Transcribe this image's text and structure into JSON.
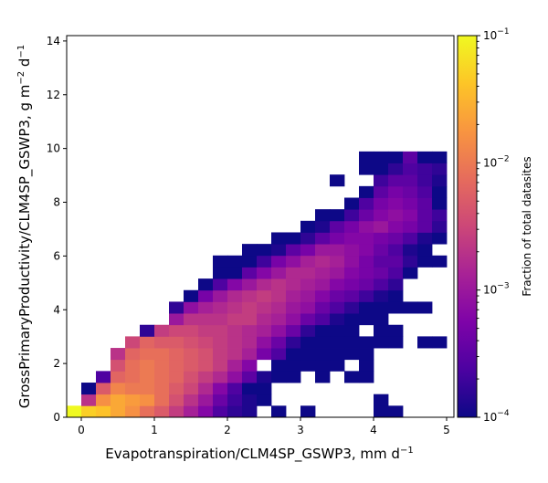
{
  "chart_data": {
    "type": "heatmap",
    "title": "",
    "xlabel_main": "Evapotranspiration/CLM4SP_GSWP3,  mm d",
    "xlabel_sup": "−1",
    "ylabel_main": "GrossPrimaryProductivity/CLM4SP_GSWP3,  g m",
    "ylabel_sup1": "−2",
    "ylabel_mid": " d",
    "ylabel_sup2": "−1",
    "xlim": [
      -0.2,
      5.1
    ],
    "ylim": [
      0,
      14.2
    ],
    "xticks": [
      "0",
      "1",
      "2",
      "3",
      "4",
      "5"
    ],
    "yticks": [
      "0",
      "2",
      "4",
      "6",
      "8",
      "10",
      "12",
      "14"
    ],
    "bin_width_x": 0.2,
    "bin_height_y": 0.43,
    "colorbar": {
      "label": "Fraction of total datasites",
      "scale": "log",
      "range": [
        0.0001,
        0.1
      ],
      "tick_base": "10",
      "tick_exponents": [
        "−4",
        "−3",
        "−2",
        "−1"
      ],
      "colormap": "plasma"
    },
    "cells": [
      [
        -0.2,
        0,
        -1.0
      ],
      [
        0.0,
        0,
        -1.3
      ],
      [
        0.2,
        0,
        -1.4
      ],
      [
        0.4,
        0,
        -1.6
      ],
      [
        0.6,
        0,
        -1.8
      ],
      [
        0.8,
        0,
        -2.1
      ],
      [
        1.0,
        0,
        -2.3
      ],
      [
        1.2,
        0,
        -2.6
      ],
      [
        1.4,
        0,
        -2.9
      ],
      [
        1.6,
        0,
        -3.2
      ],
      [
        1.8,
        0,
        -3.6
      ],
      [
        2.0,
        0,
        -3.8
      ],
      [
        2.2,
        0,
        -3.9
      ],
      [
        2.6,
        0,
        -4.0
      ],
      [
        3.0,
        0,
        -4.0
      ],
      [
        4.0,
        0,
        -4.0
      ],
      [
        4.2,
        0,
        -4.0
      ],
      [
        0.0,
        1,
        -2.7
      ],
      [
        0.2,
        1,
        -1.8
      ],
      [
        0.4,
        1,
        -1.6
      ],
      [
        0.6,
        1,
        -1.7
      ],
      [
        0.8,
        1,
        -1.8
      ],
      [
        1.0,
        1,
        -2.1
      ],
      [
        1.2,
        1,
        -2.4
      ],
      [
        1.4,
        1,
        -2.7
      ],
      [
        1.6,
        1,
        -3.0
      ],
      [
        1.8,
        1,
        -3.4
      ],
      [
        2.0,
        1,
        -3.7
      ],
      [
        2.2,
        1,
        -3.9
      ],
      [
        2.4,
        1,
        -4.0
      ],
      [
        4.0,
        1,
        -4.0
      ],
      [
        0.0,
        2,
        -4.0
      ],
      [
        0.2,
        2,
        -2.3
      ],
      [
        0.4,
        2,
        -1.9
      ],
      [
        0.6,
        2,
        -2.0
      ],
      [
        0.8,
        2,
        -2.0
      ],
      [
        1.0,
        2,
        -2.1
      ],
      [
        1.2,
        2,
        -2.3
      ],
      [
        1.4,
        2,
        -2.5
      ],
      [
        1.6,
        2,
        -2.8
      ],
      [
        1.8,
        2,
        -3.2
      ],
      [
        2.0,
        2,
        -3.6
      ],
      [
        2.2,
        2,
        -4.0
      ],
      [
        2.4,
        2,
        -4.0
      ],
      [
        0.2,
        3,
        -3.6
      ],
      [
        0.4,
        3,
        -2.2
      ],
      [
        0.6,
        3,
        -2.1
      ],
      [
        0.8,
        3,
        -2.0
      ],
      [
        1.0,
        3,
        -2.1
      ],
      [
        1.2,
        3,
        -2.2
      ],
      [
        1.4,
        3,
        -2.4
      ],
      [
        1.6,
        3,
        -2.6
      ],
      [
        1.8,
        3,
        -2.8
      ],
      [
        2.0,
        3,
        -3.1
      ],
      [
        2.2,
        3,
        -3.5
      ],
      [
        2.4,
        3,
        -3.9
      ],
      [
        2.6,
        3,
        -4.0
      ],
      [
        2.8,
        3,
        -4.0
      ],
      [
        3.2,
        3,
        -4.0
      ],
      [
        3.6,
        3,
        -4.0
      ],
      [
        3.8,
        3,
        -4.0
      ],
      [
        0.4,
        4,
        -2.4
      ],
      [
        0.6,
        4,
        -2.1
      ],
      [
        0.8,
        4,
        -2.0
      ],
      [
        1.0,
        4,
        -2.1
      ],
      [
        1.2,
        4,
        -2.2
      ],
      [
        1.4,
        4,
        -2.3
      ],
      [
        1.6,
        4,
        -2.4
      ],
      [
        1.8,
        4,
        -2.6
      ],
      [
        2.0,
        4,
        -2.9
      ],
      [
        2.2,
        4,
        -3.2
      ],
      [
        2.6,
        4,
        -4.0
      ],
      [
        2.8,
        4,
        -4.0
      ],
      [
        3.0,
        4,
        -4.0
      ],
      [
        3.2,
        4,
        -4.0
      ],
      [
        3.4,
        4,
        -4.0
      ],
      [
        3.8,
        4,
        -4.0
      ],
      [
        0.4,
        5,
        -2.7
      ],
      [
        0.6,
        5,
        -2.2
      ],
      [
        0.8,
        5,
        -2.1
      ],
      [
        1.0,
        5,
        -2.1
      ],
      [
        1.2,
        5,
        -2.2
      ],
      [
        1.4,
        5,
        -2.3
      ],
      [
        1.6,
        5,
        -2.4
      ],
      [
        1.8,
        5,
        -2.6
      ],
      [
        2.0,
        5,
        -2.7
      ],
      [
        2.2,
        5,
        -2.9
      ],
      [
        2.4,
        5,
        -3.3
      ],
      [
        2.6,
        5,
        -3.6
      ],
      [
        2.8,
        5,
        -4.0
      ],
      [
        3.0,
        5,
        -4.0
      ],
      [
        3.2,
        5,
        -4.0
      ],
      [
        3.4,
        5,
        -4.0
      ],
      [
        3.6,
        5,
        -4.0
      ],
      [
        3.8,
        5,
        -4.0
      ],
      [
        0.6,
        6,
        -2.5
      ],
      [
        0.8,
        6,
        -2.2
      ],
      [
        1.0,
        6,
        -2.3
      ],
      [
        1.2,
        6,
        -2.3
      ],
      [
        1.4,
        6,
        -2.4
      ],
      [
        1.6,
        6,
        -2.5
      ],
      [
        1.8,
        6,
        -2.6
      ],
      [
        2.0,
        6,
        -2.7
      ],
      [
        2.2,
        6,
        -2.8
      ],
      [
        2.4,
        6,
        -3.1
      ],
      [
        2.6,
        6,
        -3.4
      ],
      [
        2.8,
        6,
        -3.8
      ],
      [
        3.0,
        6,
        -4.0
      ],
      [
        3.2,
        6,
        -4.0
      ],
      [
        3.4,
        6,
        -4.0
      ],
      [
        3.6,
        6,
        -4.0
      ],
      [
        3.8,
        6,
        -4.0
      ],
      [
        4.0,
        6,
        -4.0
      ],
      [
        4.2,
        6,
        -4.0
      ],
      [
        4.6,
        6,
        -4.0
      ],
      [
        4.8,
        6,
        -4.0
      ],
      [
        0.8,
        7,
        -3.8
      ],
      [
        1.0,
        7,
        -2.6
      ],
      [
        1.2,
        7,
        -2.5
      ],
      [
        1.4,
        7,
        -2.5
      ],
      [
        1.6,
        7,
        -2.6
      ],
      [
        1.8,
        7,
        -2.6
      ],
      [
        2.0,
        7,
        -2.7
      ],
      [
        2.2,
        7,
        -2.8
      ],
      [
        2.4,
        7,
        -2.9
      ],
      [
        2.6,
        7,
        -3.1
      ],
      [
        2.8,
        7,
        -3.4
      ],
      [
        3.0,
        7,
        -3.8
      ],
      [
        3.2,
        7,
        -4.0
      ],
      [
        3.4,
        7,
        -4.0
      ],
      [
        3.6,
        7,
        -4.0
      ],
      [
        4.0,
        7,
        -4.0
      ],
      [
        4.2,
        7,
        -4.0
      ],
      [
        1.2,
        8,
        -3.0
      ],
      [
        1.4,
        8,
        -2.7
      ],
      [
        1.6,
        8,
        -2.7
      ],
      [
        1.8,
        8,
        -2.7
      ],
      [
        2.0,
        8,
        -2.6
      ],
      [
        2.2,
        8,
        -2.6
      ],
      [
        2.4,
        8,
        -2.8
      ],
      [
        2.6,
        8,
        -2.9
      ],
      [
        2.8,
        8,
        -3.1
      ],
      [
        3.0,
        8,
        -3.4
      ],
      [
        3.2,
        8,
        -3.6
      ],
      [
        3.4,
        8,
        -3.9
      ],
      [
        3.6,
        8,
        -4.0
      ],
      [
        3.8,
        8,
        -4.0
      ],
      [
        4.0,
        8,
        -4.0
      ],
      [
        1.2,
        9,
        -3.8
      ],
      [
        1.4,
        9,
        -3.1
      ],
      [
        1.6,
        9,
        -2.9
      ],
      [
        1.8,
        9,
        -2.8
      ],
      [
        2.0,
        9,
        -2.7
      ],
      [
        2.2,
        9,
        -2.6
      ],
      [
        2.4,
        9,
        -2.7
      ],
      [
        2.6,
        9,
        -2.8
      ],
      [
        2.8,
        9,
        -3.0
      ],
      [
        3.0,
        9,
        -3.1
      ],
      [
        3.2,
        9,
        -3.4
      ],
      [
        3.4,
        9,
        -3.6
      ],
      [
        3.6,
        9,
        -3.8
      ],
      [
        3.8,
        9,
        -4.0
      ],
      [
        4.0,
        9,
        -4.0
      ],
      [
        4.2,
        9,
        -4.0
      ],
      [
        4.4,
        9,
        -4.0
      ],
      [
        4.6,
        9,
        -4.0
      ],
      [
        1.4,
        10,
        -4.0
      ],
      [
        1.6,
        10,
        -3.3
      ],
      [
        1.8,
        10,
        -3.0
      ],
      [
        2.0,
        10,
        -2.8
      ],
      [
        2.2,
        10,
        -2.7
      ],
      [
        2.4,
        10,
        -2.6
      ],
      [
        2.6,
        10,
        -2.7
      ],
      [
        2.8,
        10,
        -2.9
      ],
      [
        3.0,
        10,
        -3.0
      ],
      [
        3.2,
        10,
        -3.2
      ],
      [
        3.4,
        10,
        -3.4
      ],
      [
        3.6,
        10,
        -3.5
      ],
      [
        3.8,
        10,
        -3.7
      ],
      [
        4.0,
        10,
        -3.9
      ],
      [
        4.2,
        10,
        -4.0
      ],
      [
        1.6,
        11,
        -4.0
      ],
      [
        1.8,
        11,
        -3.6
      ],
      [
        2.0,
        11,
        -3.2
      ],
      [
        2.2,
        11,
        -3.0
      ],
      [
        2.4,
        11,
        -2.8
      ],
      [
        2.6,
        11,
        -2.7
      ],
      [
        2.8,
        11,
        -2.8
      ],
      [
        3.0,
        11,
        -2.9
      ],
      [
        3.2,
        11,
        -3.0
      ],
      [
        3.4,
        11,
        -3.2
      ],
      [
        3.6,
        11,
        -3.3
      ],
      [
        3.8,
        11,
        -3.4
      ],
      [
        4.0,
        11,
        -3.6
      ],
      [
        4.2,
        11,
        -3.8
      ],
      [
        1.8,
        12,
        -4.0
      ],
      [
        2.0,
        12,
        -4.0
      ],
      [
        2.2,
        12,
        -3.5
      ],
      [
        2.4,
        12,
        -3.2
      ],
      [
        2.6,
        12,
        -3.0
      ],
      [
        2.8,
        12,
        -2.8
      ],
      [
        3.0,
        12,
        -2.8
      ],
      [
        3.2,
        12,
        -2.9
      ],
      [
        3.4,
        12,
        -3.0
      ],
      [
        3.6,
        12,
        -3.2
      ],
      [
        3.8,
        12,
        -3.3
      ],
      [
        4.0,
        12,
        -3.4
      ],
      [
        4.2,
        12,
        -3.6
      ],
      [
        4.4,
        12,
        -4.0
      ],
      [
        1.8,
        13,
        -4.0
      ],
      [
        2.0,
        13,
        -4.0
      ],
      [
        2.2,
        13,
        -4.0
      ],
      [
        2.4,
        13,
        -3.7
      ],
      [
        2.6,
        13,
        -3.3
      ],
      [
        2.8,
        13,
        -3.1
      ],
      [
        3.0,
        13,
        -2.9
      ],
      [
        3.2,
        13,
        -2.8
      ],
      [
        3.4,
        13,
        -2.9
      ],
      [
        3.6,
        13,
        -3.1
      ],
      [
        3.8,
        13,
        -3.3
      ],
      [
        4.0,
        13,
        -3.5
      ],
      [
        4.2,
        13,
        -3.5
      ],
      [
        4.4,
        13,
        -3.8
      ],
      [
        4.6,
        13,
        -4.0
      ],
      [
        4.8,
        13,
        -4.0
      ],
      [
        2.2,
        14,
        -4.0
      ],
      [
        2.4,
        14,
        -4.0
      ],
      [
        2.6,
        14,
        -3.9
      ],
      [
        2.8,
        14,
        -3.5
      ],
      [
        3.0,
        14,
        -3.3
      ],
      [
        3.2,
        14,
        -3.0
      ],
      [
        3.4,
        14,
        -3.0
      ],
      [
        3.6,
        14,
        -3.1
      ],
      [
        3.8,
        14,
        -3.2
      ],
      [
        4.0,
        14,
        -3.4
      ],
      [
        4.2,
        14,
        -3.6
      ],
      [
        4.4,
        14,
        -3.9
      ],
      [
        4.6,
        14,
        -4.0
      ],
      [
        2.6,
        15,
        -4.0
      ],
      [
        2.8,
        15,
        -4.0
      ],
      [
        3.0,
        15,
        -3.8
      ],
      [
        3.2,
        15,
        -3.5
      ],
      [
        3.4,
        15,
        -3.3
      ],
      [
        3.6,
        15,
        -3.2
      ],
      [
        3.8,
        15,
        -3.2
      ],
      [
        4.0,
        15,
        -3.3
      ],
      [
        4.2,
        15,
        -3.4
      ],
      [
        4.4,
        15,
        -3.6
      ],
      [
        4.6,
        15,
        -3.9
      ],
      [
        4.8,
        15,
        -4.0
      ],
      [
        3.0,
        16,
        -4.0
      ],
      [
        3.2,
        16,
        -3.9
      ],
      [
        3.4,
        16,
        -3.5
      ],
      [
        3.6,
        16,
        -3.3
      ],
      [
        3.8,
        16,
        -3.1
      ],
      [
        4.0,
        16,
        -3.0
      ],
      [
        4.2,
        16,
        -3.2
      ],
      [
        4.4,
        16,
        -3.3
      ],
      [
        4.6,
        16,
        -3.5
      ],
      [
        4.8,
        16,
        -3.8
      ],
      [
        3.2,
        17,
        -4.0
      ],
      [
        3.4,
        17,
        -4.0
      ],
      [
        3.6,
        17,
        -3.7
      ],
      [
        3.8,
        17,
        -3.4
      ],
      [
        4.0,
        17,
        -3.2
      ],
      [
        4.2,
        17,
        -3.1
      ],
      [
        4.4,
        17,
        -3.2
      ],
      [
        4.6,
        17,
        -3.5
      ],
      [
        4.8,
        17,
        -3.7
      ],
      [
        3.6,
        18,
        -4.0
      ],
      [
        3.8,
        18,
        -3.6
      ],
      [
        4.0,
        18,
        -3.3
      ],
      [
        4.2,
        18,
        -3.2
      ],
      [
        4.4,
        18,
        -3.3
      ],
      [
        4.6,
        18,
        -3.5
      ],
      [
        4.8,
        18,
        -4.0
      ],
      [
        3.8,
        19,
        -4.0
      ],
      [
        4.0,
        19,
        -3.5
      ],
      [
        4.2,
        19,
        -3.3
      ],
      [
        4.4,
        19,
        -3.4
      ],
      [
        4.6,
        19,
        -3.6
      ],
      [
        4.8,
        19,
        -4.0
      ],
      [
        3.4,
        20,
        -4.0
      ],
      [
        4.0,
        20,
        -3.7
      ],
      [
        4.2,
        20,
        -3.5
      ],
      [
        4.4,
        20,
        -3.5
      ],
      [
        4.6,
        20,
        -3.7
      ],
      [
        4.8,
        20,
        -3.9
      ],
      [
        3.8,
        21,
        -4.0
      ],
      [
        4.0,
        21,
        -4.0
      ],
      [
        4.2,
        21,
        -3.8
      ],
      [
        4.4,
        21,
        -3.6
      ],
      [
        4.6,
        21,
        -3.7
      ],
      [
        4.8,
        21,
        -3.8
      ],
      [
        3.8,
        22,
        -4.0
      ],
      [
        4.0,
        22,
        -4.0
      ],
      [
        4.2,
        22,
        -4.0
      ],
      [
        4.4,
        22,
        -3.5
      ],
      [
        4.6,
        22,
        -4.0
      ],
      [
        4.8,
        22,
        -4.0
      ]
    ]
  }
}
